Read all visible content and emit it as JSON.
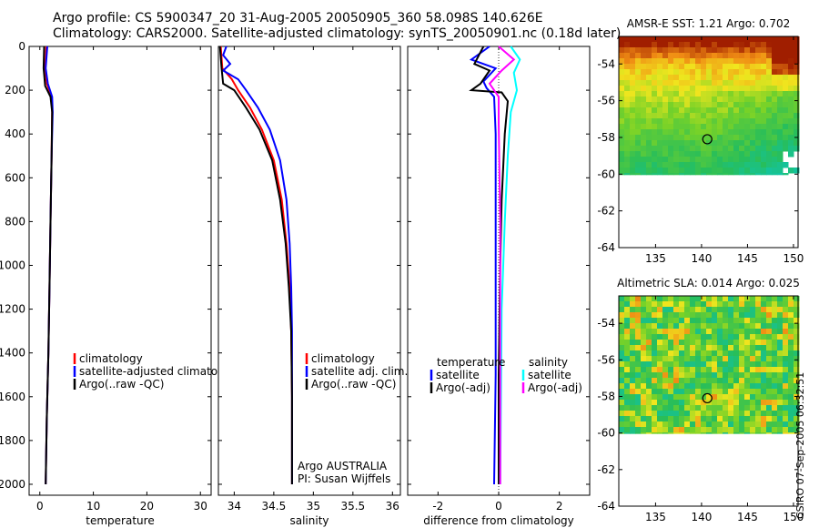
{
  "header": {
    "title_line1": "Argo profile: CS 5900347_20 31-Aug-2005 20050905_360 58.098S 140.626E",
    "title_line2": "Climatology: CARS2000. Satellite-adjusted climatology: synTS_20050901.nc (0.18d later)"
  },
  "credit": "CSIRO 07-Sep-2005 06:32:51",
  "colors": {
    "red": "#ff0000",
    "blue": "#0000ff",
    "black": "#000000",
    "cyan": "#00ffff",
    "magenta": "#ff00ff"
  },
  "chart_data": [
    {
      "type": "line",
      "panel": "temperature",
      "xlabel": "temperature",
      "xlim": [
        -2,
        32
      ],
      "ylim": [
        2050,
        0
      ],
      "xticks": [
        "0",
        "10",
        "20",
        "30"
      ],
      "xtick_values": [
        0,
        10,
        20,
        30
      ],
      "yticks": [
        "0",
        "200",
        "400",
        "600",
        "800",
        "1000",
        "1200",
        "1400",
        "1600",
        "1800",
        "2000"
      ],
      "ytick_values": [
        0,
        200,
        400,
        600,
        800,
        1000,
        1200,
        1400,
        1600,
        1800,
        2000
      ],
      "series": [
        {
          "name": "climatology",
          "color": "red",
          "points": [
            [
              1.2,
              0
            ],
            [
              1.0,
              100
            ],
            [
              1.3,
              170
            ],
            [
              2.2,
              230
            ],
            [
              2.3,
              300
            ],
            [
              2.2,
              500
            ],
            [
              2.0,
              800
            ],
            [
              1.8,
              1100
            ],
            [
              1.6,
              1400
            ],
            [
              1.3,
              1700
            ],
            [
              1.1,
              2000
            ]
          ]
        },
        {
          "name": "satellite-adjusted climatology",
          "color": "blue",
          "points": [
            [
              1.4,
              0
            ],
            [
              1.1,
              100
            ],
            [
              1.5,
              170
            ],
            [
              2.3,
              230
            ],
            [
              2.4,
              300
            ],
            [
              2.2,
              500
            ],
            [
              2.0,
              800
            ],
            [
              1.8,
              1100
            ],
            [
              1.6,
              1400
            ],
            [
              1.3,
              1700
            ],
            [
              1.1,
              2000
            ]
          ]
        },
        {
          "name": "Argo(..raw -QC)",
          "color": "black",
          "points": [
            [
              0.8,
              0
            ],
            [
              0.7,
              100
            ],
            [
              1.0,
              180
            ],
            [
              2.0,
              230
            ],
            [
              2.3,
              300
            ],
            [
              2.2,
              500
            ],
            [
              2.0,
              800
            ],
            [
              1.8,
              1100
            ],
            [
              1.6,
              1400
            ],
            [
              1.3,
              1700
            ],
            [
              1.1,
              2000
            ]
          ]
        }
      ],
      "legend": [
        "climatology",
        "satellite-adjusted climatology",
        "Argo(..raw -QC)"
      ]
    },
    {
      "type": "line",
      "panel": "salinity",
      "xlabel": "salinity",
      "xlim": [
        33.8,
        36.1
      ],
      "ylim": [
        2050,
        0
      ],
      "xticks": [
        "34",
        "34.5",
        "35",
        "35.5",
        "36"
      ],
      "xtick_values": [
        34,
        34.5,
        35,
        35.5,
        36
      ],
      "series": [
        {
          "name": "climatology",
          "color": "red",
          "points": [
            [
              33.83,
              0
            ],
            [
              33.85,
              100
            ],
            [
              33.97,
              150
            ],
            [
              34.05,
              200
            ],
            [
              34.2,
              280
            ],
            [
              34.35,
              380
            ],
            [
              34.5,
              520
            ],
            [
              34.6,
              700
            ],
            [
              34.66,
              900
            ],
            [
              34.7,
              1100
            ],
            [
              34.72,
              1300
            ],
            [
              34.73,
              1600
            ],
            [
              34.73,
              2000
            ]
          ]
        },
        {
          "name": "satellite adj. clim.",
          "color": "blue",
          "points": [
            [
              33.9,
              0
            ],
            [
              33.86,
              40
            ],
            [
              33.95,
              80
            ],
            [
              33.86,
              110
            ],
            [
              34.05,
              150
            ],
            [
              34.15,
              200
            ],
            [
              34.3,
              280
            ],
            [
              34.45,
              380
            ],
            [
              34.58,
              520
            ],
            [
              34.66,
              700
            ],
            [
              34.7,
              900
            ],
            [
              34.72,
              1100
            ],
            [
              34.73,
              1300
            ],
            [
              34.73,
              1600
            ],
            [
              34.73,
              2000
            ]
          ]
        },
        {
          "name": "Argo(..raw -QC)",
          "color": "black",
          "points": [
            [
              33.82,
              0
            ],
            [
              33.84,
              100
            ],
            [
              33.86,
              170
            ],
            [
              34.0,
              200
            ],
            [
              34.15,
              280
            ],
            [
              34.32,
              380
            ],
            [
              34.48,
              520
            ],
            [
              34.58,
              700
            ],
            [
              34.65,
              900
            ],
            [
              34.69,
              1100
            ],
            [
              34.72,
              1300
            ],
            [
              34.73,
              1600
            ],
            [
              34.73,
              2000
            ]
          ]
        }
      ],
      "legend": [
        "climatology",
        "satellite adj. clim.",
        "Argo(..raw -QC)"
      ],
      "annotation": [
        "Argo AUSTRALIA",
        "PI: Susan Wijffels"
      ]
    },
    {
      "type": "line",
      "panel": "difference",
      "xlabel": "difference from climatology",
      "xlim": [
        -3.0,
        3.0
      ],
      "ylim": [
        2050,
        0
      ],
      "xticks": [
        "-2",
        "0",
        "2"
      ],
      "xtick_values": [
        -2,
        0,
        2
      ],
      "series": [
        {
          "name": "temperature satellite",
          "color": "blue",
          "points": [
            [
              -0.3,
              0
            ],
            [
              -0.9,
              60
            ],
            [
              -0.1,
              100
            ],
            [
              -0.5,
              160
            ],
            [
              -0.4,
              190
            ],
            [
              -0.15,
              230
            ],
            [
              -0.1,
              400
            ],
            [
              -0.1,
              1000
            ],
            [
              -0.1,
              1500
            ],
            [
              -0.15,
              2000
            ]
          ]
        },
        {
          "name": "temperature Argo(-adj)",
          "color": "black",
          "points": [
            [
              -0.5,
              0
            ],
            [
              -0.8,
              80
            ],
            [
              -0.3,
              110
            ],
            [
              -0.6,
              170
            ],
            [
              -0.9,
              200
            ],
            [
              0.1,
              210
            ],
            [
              0.3,
              250
            ],
            [
              0.2,
              400
            ],
            [
              0.1,
              700
            ],
            [
              0.05,
              1000
            ],
            [
              0.0,
              1500
            ],
            [
              0.0,
              2000
            ]
          ]
        },
        {
          "name": "salinity satellite",
          "color": "cyan",
          "points": [
            [
              0.4,
              0
            ],
            [
              0.7,
              60
            ],
            [
              0.5,
              120
            ],
            [
              0.6,
              200
            ],
            [
              0.4,
              300
            ],
            [
              0.3,
              500
            ],
            [
              0.2,
              800
            ],
            [
              0.1,
              1200
            ],
            [
              0.05,
              2000
            ]
          ]
        },
        {
          "name": "salinity Argo(-adj)",
          "color": "magenta",
          "points": [
            [
              0.0,
              0
            ],
            [
              0.5,
              60
            ],
            [
              0.1,
              110
            ],
            [
              -0.3,
              170
            ],
            [
              0.0,
              230
            ],
            [
              0.0,
              350
            ],
            [
              0.05,
              800
            ],
            [
              0.05,
              1500
            ],
            [
              0.05,
              2000
            ]
          ]
        }
      ],
      "legend_titles": [
        "temperature",
        "salinity"
      ],
      "legend": [
        "satellite",
        "Argo(-adj)",
        "satellite",
        "Argo(-adj)"
      ]
    },
    {
      "type": "heatmap",
      "panel": "sst_map",
      "title": "AMSR-E SST: 1.21 Argo: 0.702",
      "xlim": [
        131,
        150.5
      ],
      "ylim": [
        -64,
        -52.5
      ],
      "xticks": [
        "135",
        "140",
        "145",
        "150"
      ],
      "xtick_values": [
        135,
        140,
        145,
        150
      ],
      "yticks": [
        "-54",
        "-56",
        "-58",
        "-60",
        "-62",
        "-64"
      ],
      "ytick_values": [
        -54,
        -56,
        -58,
        -60,
        -62,
        -64
      ],
      "marker": [
        140.626,
        -58.098
      ]
    },
    {
      "type": "heatmap",
      "panel": "sla_map",
      "title": "Altimetric SLA: 0.014 Argo: 0.025",
      "xlim": [
        131,
        150.5
      ],
      "ylim": [
        -64,
        -52.5
      ],
      "xticks": [
        "135",
        "140",
        "145",
        "150"
      ],
      "xtick_values": [
        135,
        140,
        145,
        150
      ],
      "yticks": [
        "-54",
        "-56",
        "-58",
        "-60",
        "-62",
        "-64"
      ],
      "ytick_values": [
        -54,
        -56,
        -58,
        -60,
        -62,
        -64
      ],
      "marker": [
        140.626,
        -58.098
      ]
    }
  ]
}
